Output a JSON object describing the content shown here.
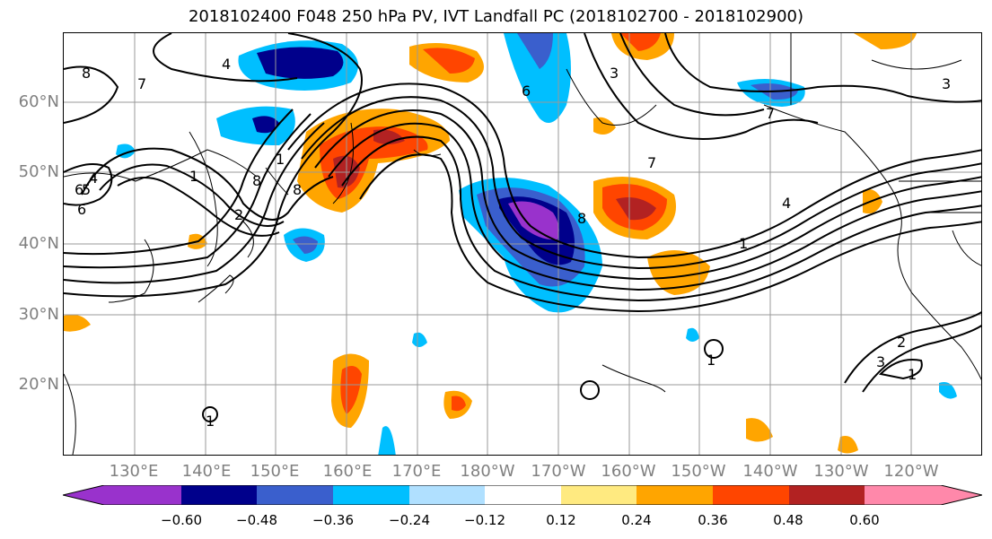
{
  "title": "2018102400 F048 250 hPa PV, IVT Landfall PC (2018102700 - 2018102900)",
  "map": {
    "lat_labels": [
      "60°N",
      "50°N",
      "40°N",
      "30°N",
      "20°N"
    ],
    "lon_labels": [
      "130°E",
      "140°E",
      "150°E",
      "160°E",
      "170°E",
      "180°W",
      "170°W",
      "160°W",
      "150°W",
      "140°W",
      "130°W",
      "120°W"
    ],
    "contour_labels": [
      "8",
      "7",
      "4",
      "6",
      "5",
      "6",
      "8",
      "1",
      "2",
      "8",
      "6",
      "4",
      "3",
      "3",
      "7",
      "7",
      "4",
      "1",
      "1",
      "3",
      "2",
      "1",
      "1",
      "1",
      "8"
    ]
  },
  "colorbar": {
    "tick_labels": [
      "−0.60",
      "−0.48",
      "−0.36",
      "−0.24",
      "−0.12",
      "0.12",
      "0.24",
      "0.36",
      "0.48",
      "0.60"
    ],
    "colors": [
      "#9932cc",
      "#00008b",
      "#3a5fcd",
      "#00bfff",
      "#b0e0ff",
      "#ffffff",
      "#ffffff",
      "#ffea80",
      "#ffa500",
      "#ff4500",
      "#b22222",
      "#ff88aa"
    ]
  }
}
